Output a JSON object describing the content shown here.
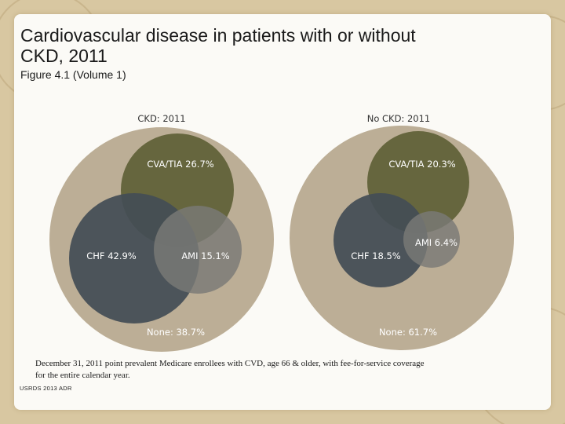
{
  "title": "Cardiovascular disease in patients with or without CKD, 2011",
  "subtitle": "Figure 4.1 (Volume 1)",
  "footnote": "December 31, 2011 point prevalent Medicare enrollees with CVD, age 66 & older, with fee-for-service coverage for the entire calendar year.",
  "source": "USRDS 2013 ADR",
  "colors": {
    "none": "#bcae96",
    "cva": "#66663e",
    "chf": "#444d55",
    "ami": "#7a7a76",
    "label": "#ffffff",
    "header": "#333333"
  },
  "chart_data": [
    {
      "type": "venn",
      "title": "CKD: 2011",
      "sets": [
        {
          "name": "None",
          "value": 38.7,
          "label": "None: 38.7%"
        },
        {
          "name": "CVA/TIA",
          "value": 26.7,
          "label": "CVA/TIA 26.7%"
        },
        {
          "name": "CHF",
          "value": 42.9,
          "label": "CHF 42.9%"
        },
        {
          "name": "AMI",
          "value": 15.1,
          "label": "AMI 15.1%"
        }
      ]
    },
    {
      "type": "venn",
      "title": "No CKD: 2011",
      "sets": [
        {
          "name": "None",
          "value": 61.7,
          "label": "None: 61.7%"
        },
        {
          "name": "CVA/TIA",
          "value": 20.3,
          "label": "CVA/TIA  20.3%"
        },
        {
          "name": "CHF",
          "value": 18.5,
          "label": "CHF 18.5%"
        },
        {
          "name": "AMI",
          "value": 6.4,
          "label": "AMI 6.4%"
        }
      ]
    }
  ]
}
